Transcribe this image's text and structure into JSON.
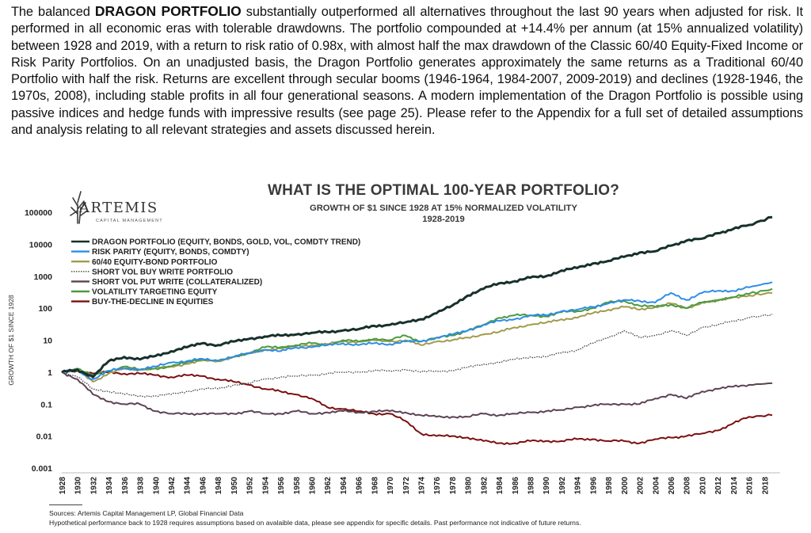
{
  "intro": {
    "pre": "The balanced ",
    "bold": "DRAGON PORTFOLIO",
    "post": " substantially outperformed all alternatives throughout the last 90 years when adjusted for risk. It performed in all economic eras with tolerable drawdowns.  The portfolio compounded at +14.4% per annum (at 15% annualized volatility) between 1928 and 2019, with a return to risk ratio of 0.98x, with almost half the max drawdown of the Classic 60/40 Equity-Fixed Income or Risk Parity Portfolios. On an unadjusted basis, the Dragon Portfolio generates approximately the same returns as a Traditional 60/40 Portfolio with half the risk. Returns are excellent through secular booms (1946-1964, 1984-2007, 2009-2019) and declines (1928-1946, the 1970s, 2008), including stable profits in all four generational seasons. A modern implementation of the Dragon Portfolio is possible using passive indices and hedge funds with impressive results (see page 25). Please refer to the Appendix for a full set of detailed assumptions and analysis relating to all relevant strategies and assets discussed herein."
  },
  "logo": {
    "name": "ARTEMIS",
    "sub": "CAPITAL MANAGEMENT",
    "icon": "stag-antlers-icon"
  },
  "footer": {
    "sources": "Sources: Artemis Capital Management LP, Global Financial Data",
    "note": "Hypothetical performance back to 1928 requires assumptions based on avalaible data, please see appendix for specific details. Past performance not indicative of future returns."
  },
  "chart_data": {
    "type": "line",
    "title": "WHAT IS THE OPTIMAL 100-YEAR PORTFOLIO?",
    "subtitle": "GROWTH OF $1 SINCE 1928 AT 15% NORMALIZED VOLATILITY",
    "subtitle2": "1928-2019",
    "ylabel": "GROWTH OF $1 SINCE 1928",
    "xlabel": "",
    "yscale": "log",
    "ylim": [
      0.001,
      100000
    ],
    "xlim": [
      1928,
      2020
    ],
    "yticks": [
      "100000",
      "10000",
      "1000",
      "100",
      "10",
      "1",
      "0.1",
      "0.01",
      "0.001"
    ],
    "yticks_values": [
      100000,
      10000,
      1000,
      100,
      10,
      1,
      0.1,
      0.01,
      0.001
    ],
    "xticks": [
      1928,
      1930,
      1932,
      1934,
      1936,
      1938,
      1940,
      1942,
      1944,
      1946,
      1948,
      1950,
      1952,
      1954,
      1956,
      1958,
      1960,
      1962,
      1964,
      1966,
      1968,
      1970,
      1972,
      1974,
      1976,
      1978,
      1980,
      1982,
      1984,
      1986,
      1988,
      1990,
      1992,
      1994,
      1996,
      1998,
      2000,
      2002,
      2004,
      2006,
      2008,
      2010,
      2012,
      2014,
      2016,
      2018
    ],
    "legend_position": "top-left",
    "grid": false,
    "series": [
      {
        "name": "DRAGON PORTFOLIO (EQUITY, BONDS, GOLD, VOL, COMDTY TREND)",
        "color": "#17302c",
        "style": "solid",
        "width": 3,
        "x": [
          1928,
          1930,
          1932,
          1934,
          1936,
          1938,
          1940,
          1942,
          1944,
          1946,
          1948,
          1950,
          1952,
          1954,
          1956,
          1958,
          1960,
          1962,
          1964,
          1966,
          1968,
          1970,
          1972,
          1974,
          1976,
          1978,
          1980,
          1982,
          1984,
          1986,
          1988,
          1990,
          1992,
          1994,
          1996,
          1998,
          2000,
          2002,
          2004,
          2006,
          2008,
          2010,
          2012,
          2014,
          2016,
          2019
        ],
        "y": [
          1,
          1.2,
          0.7,
          2.2,
          3,
          2.5,
          3.2,
          4.5,
          6,
          8,
          7,
          9,
          11,
          13,
          14,
          15,
          17,
          18,
          20,
          22,
          28,
          30,
          36,
          45,
          70,
          120,
          250,
          400,
          600,
          700,
          900,
          1000,
          1500,
          1800,
          2500,
          3000,
          4000,
          5500,
          6000,
          9000,
          13000,
          15000,
          22000,
          30000,
          40000,
          70000
        ]
      },
      {
        "name": "RISK PARITY (EQUITY, BONDS, COMDTY)",
        "color": "#2e8de6",
        "style": "solid",
        "width": 2,
        "x": [
          1928,
          1930,
          1932,
          1934,
          1936,
          1938,
          1940,
          1942,
          1944,
          1946,
          1948,
          1950,
          1952,
          1954,
          1956,
          1958,
          1960,
          1962,
          1964,
          1966,
          1968,
          1970,
          1972,
          1974,
          1976,
          1978,
          1980,
          1982,
          1984,
          1986,
          1988,
          1990,
          1992,
          1994,
          1996,
          1998,
          2000,
          2002,
          2004,
          2006,
          2008,
          2010,
          2012,
          2014,
          2016,
          2019
        ],
        "y": [
          1,
          1.1,
          0.6,
          1.1,
          1.3,
          1.2,
          1.5,
          2,
          2.2,
          2.6,
          2.3,
          3,
          4,
          5,
          4.5,
          6,
          6,
          7,
          8,
          7,
          8,
          7.5,
          9,
          9,
          12,
          15,
          20,
          30,
          40,
          45,
          60,
          60,
          80,
          90,
          110,
          140,
          180,
          170,
          150,
          300,
          180,
          300,
          350,
          350,
          450,
          650
        ]
      },
      {
        "name": "60/40 EQUITY-BOND PORTFOLIO",
        "color": "#a29a4c",
        "style": "solid",
        "width": 2,
        "x": [
          1928,
          1930,
          1932,
          1934,
          1936,
          1938,
          1940,
          1942,
          1944,
          1946,
          1948,
          1950,
          1952,
          1954,
          1956,
          1958,
          1960,
          1962,
          1964,
          1966,
          1968,
          1970,
          1972,
          1974,
          1976,
          1978,
          1980,
          1982,
          1984,
          1986,
          1988,
          1990,
          1992,
          1994,
          1996,
          1998,
          2000,
          2002,
          2004,
          2006,
          2008,
          2010,
          2012,
          2014,
          2016,
          2019
        ],
        "y": [
          1,
          1.2,
          0.5,
          0.9,
          1.3,
          1.2,
          1.3,
          1.5,
          1.8,
          2.3,
          2.2,
          3,
          3.8,
          5,
          5.5,
          6.5,
          7,
          7.5,
          9,
          9,
          10,
          9,
          10,
          7,
          9,
          10,
          12,
          15,
          18,
          25,
          30,
          35,
          45,
          50,
          70,
          90,
          110,
          90,
          110,
          140,
          100,
          150,
          170,
          220,
          250,
          300
        ]
      },
      {
        "name": "SHORT VOL BUY WRITE PORTFOLIO",
        "color": "#444444",
        "style": "dotted",
        "width": 1.3,
        "x": [
          1928,
          1930,
          1932,
          1934,
          1936,
          1938,
          1940,
          1942,
          1944,
          1946,
          1948,
          1950,
          1952,
          1954,
          1956,
          1958,
          1960,
          1962,
          1964,
          1966,
          1968,
          1970,
          1972,
          1974,
          1976,
          1978,
          1980,
          1982,
          1984,
          1986,
          1988,
          1990,
          1992,
          1994,
          1996,
          1998,
          2000,
          2002,
          2004,
          2006,
          2008,
          2010,
          2012,
          2014,
          2016,
          2019
        ],
        "y": [
          1,
          0.7,
          0.3,
          0.25,
          0.2,
          0.18,
          0.18,
          0.2,
          0.25,
          0.3,
          0.3,
          0.4,
          0.45,
          0.6,
          0.7,
          0.75,
          0.8,
          0.9,
          1,
          1,
          1.1,
          1.1,
          1.2,
          1,
          1.1,
          1.1,
          1.4,
          1.8,
          2,
          2.5,
          3,
          3,
          4,
          5,
          8,
          12,
          20,
          12,
          14,
          20,
          14,
          25,
          30,
          40,
          50,
          65
        ]
      },
      {
        "name": "SHORT VOL PUT WRITE (COLLATERALIZED)",
        "color": "#5b4354",
        "style": "solid",
        "width": 2,
        "x": [
          1928,
          1930,
          1932,
          1934,
          1936,
          1938,
          1940,
          1942,
          1944,
          1946,
          1948,
          1950,
          1952,
          1954,
          1956,
          1958,
          1960,
          1962,
          1964,
          1966,
          1968,
          1970,
          1972,
          1974,
          1976,
          1978,
          1980,
          1982,
          1984,
          1986,
          1988,
          1990,
          1992,
          1994,
          1996,
          1998,
          2000,
          2002,
          2004,
          2006,
          2008,
          2010,
          2012,
          2014,
          2016,
          2019
        ],
        "y": [
          1,
          0.6,
          0.2,
          0.12,
          0.1,
          0.1,
          0.06,
          0.05,
          0.05,
          0.05,
          0.05,
          0.05,
          0.06,
          0.05,
          0.05,
          0.06,
          0.05,
          0.055,
          0.06,
          0.055,
          0.06,
          0.06,
          0.055,
          0.045,
          0.04,
          0.04,
          0.04,
          0.05,
          0.045,
          0.05,
          0.055,
          0.06,
          0.065,
          0.08,
          0.09,
          0.1,
          0.1,
          0.1,
          0.15,
          0.2,
          0.15,
          0.25,
          0.3,
          0.35,
          0.4,
          0.45
        ]
      },
      {
        "name": "VOLATILITY TARGETING EQUITY",
        "color": "#4a9a40",
        "style": "solid",
        "width": 2,
        "x": [
          1928,
          1930,
          1932,
          1934,
          1936,
          1938,
          1940,
          1942,
          1944,
          1946,
          1948,
          1950,
          1952,
          1954,
          1956,
          1958,
          1960,
          1962,
          1964,
          1966,
          1968,
          1970,
          1972,
          1974,
          1976,
          1978,
          1980,
          1982,
          1984,
          1986,
          1988,
          1990,
          1992,
          1994,
          1996,
          1998,
          2000,
          2002,
          2004,
          2006,
          2008,
          2010,
          2012,
          2014,
          2016,
          2019
        ],
        "y": [
          1,
          1.3,
          0.8,
          1.1,
          1.5,
          1.2,
          1.3,
          1.5,
          2,
          2.6,
          2.2,
          3,
          4,
          6,
          6,
          7,
          8,
          7,
          10,
          9,
          11,
          10,
          14,
          9,
          12,
          14,
          20,
          30,
          50,
          60,
          60,
          55,
          75,
          80,
          100,
          150,
          170,
          120,
          110,
          130,
          100,
          150,
          180,
          220,
          280,
          400
        ]
      },
      {
        "name": "BUY-THE-DECLINE IN EQUITIES",
        "color": "#7b1010",
        "style": "solid",
        "width": 2,
        "x": [
          1928,
          1930,
          1932,
          1934,
          1936,
          1938,
          1940,
          1942,
          1944,
          1946,
          1948,
          1950,
          1952,
          1954,
          1956,
          1958,
          1960,
          1962,
          1964,
          1966,
          1968,
          1970,
          1972,
          1974,
          1976,
          1978,
          1980,
          1982,
          1984,
          1986,
          1988,
          1990,
          1992,
          1994,
          1996,
          1998,
          2000,
          2002,
          2004,
          2006,
          2008,
          2010,
          2012,
          2014,
          2016,
          2019
        ],
        "y": [
          1,
          1.1,
          0.9,
          1,
          0.9,
          0.9,
          0.8,
          0.7,
          0.8,
          0.75,
          0.6,
          0.5,
          0.4,
          0.3,
          0.25,
          0.2,
          0.15,
          0.08,
          0.07,
          0.06,
          0.05,
          0.05,
          0.03,
          0.012,
          0.01,
          0.01,
          0.009,
          0.007,
          0.006,
          0.006,
          0.007,
          0.007,
          0.007,
          0.008,
          0.008,
          0.007,
          0.007,
          0.006,
          0.008,
          0.009,
          0.01,
          0.012,
          0.015,
          0.025,
          0.04,
          0.045
        ]
      }
    ]
  }
}
